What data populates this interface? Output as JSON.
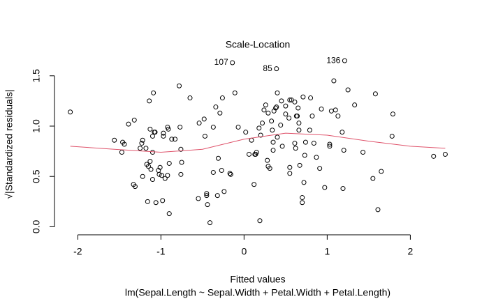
{
  "chart_data": {
    "type": "scatter",
    "title": "Scale-Location",
    "x_label": "Fitted values",
    "subtitle": "lm(Sepal.Length ~ Sepal.Width + Petal.Width + Petal.Length)",
    "y_label": "√|Standardized residuals|",
    "xlim": [
      -2.28,
      2.61
    ],
    "ylim": [
      -0.08,
      1.72
    ],
    "xticks": [
      -2,
      -1,
      0,
      1,
      2
    ],
    "yticks": [
      {
        "value": 0,
        "label": "0.0"
      },
      {
        "value": 0.5,
        "label": "0.5"
      },
      {
        "value": 1,
        "label": "1.0"
      },
      {
        "value": 1.5,
        "label": "1.5"
      }
    ],
    "points": {
      "color": "#000000",
      "x": [
        -2.09,
        -1.56,
        -1.46,
        -1.47,
        -1.44,
        -1.39,
        -1.32,
        -1.33,
        -1.31,
        -1.25,
        -1.23,
        -1.22,
        -1.22,
        -1.18,
        -1.17,
        -1.16,
        -1.15,
        -1.14,
        -1.13,
        -1.13,
        -1.09,
        -1.12,
        -1.1,
        -1.1,
        -1.1,
        -1.08,
        -1.07,
        -1.06,
        -1.03,
        -1.02,
        -1.01,
        -0.99,
        -0.98,
        -0.97,
        -0.97,
        -0.95,
        -0.92,
        -0.92,
        -0.91,
        -0.9,
        -0.9,
        -0.87,
        -0.83,
        -0.78,
        -0.77,
        -0.76,
        -0.75,
        -0.76,
        -0.65,
        -0.55,
        -0.54,
        -0.48,
        -0.47,
        -0.45,
        -0.45,
        -0.44,
        -0.41,
        -0.37,
        -0.37,
        -0.34,
        -0.32,
        -0.31,
        -0.29,
        -0.27,
        -0.26,
        -0.24,
        -0.17,
        -0.16,
        -0.14,
        -0.11,
        -0.07,
        0.02,
        0.06,
        0.09,
        0.12,
        0.13,
        0.14,
        0.15,
        0.18,
        0.19,
        0.2,
        0.22,
        0.24,
        0.26,
        0.28,
        0.29,
        0.29,
        0.31,
        0.33,
        0.34,
        0.35,
        0.35,
        0.36,
        0.38,
        0.39,
        0.4,
        0.4,
        0.39,
        0.44,
        0.45,
        0.46,
        0.5,
        0.5,
        0.54,
        0.55,
        0.55,
        0.55,
        0.57,
        0.61,
        0.61,
        0.62,
        0.63,
        0.64,
        0.65,
        0.66,
        0.66,
        0.67,
        0.7,
        0.7,
        0.71,
        0.72,
        0.73,
        0.74,
        0.79,
        0.8,
        0.82,
        0.84,
        0.87,
        0.91,
        0.93,
        0.97,
        1.03,
        1.03,
        1.05,
        1.08,
        1.1,
        1.13,
        1.18,
        1.19,
        1.2,
        1.21,
        1.25,
        1.33,
        1.43,
        1.55,
        1.58,
        1.61,
        1.65,
        1.78,
        1.79,
        2.28,
        2.42
      ],
      "y": [
        1.14,
        0.86,
        0.84,
        0.74,
        0.82,
        1.02,
        1.06,
        0.42,
        0.4,
        0.78,
        0.83,
        0.86,
        0.5,
        0.78,
        0.62,
        0.25,
        0.6,
        1.25,
        0.97,
        0.65,
        1.33,
        0.57,
        0.47,
        0.74,
        0.9,
        0.94,
        0.94,
        0.24,
        0.56,
        0.52,
        0.59,
        0.51,
        0.26,
        0.9,
        0.93,
        0.48,
        0.51,
        0.99,
        0.97,
        0.13,
        0.63,
        0.87,
        0.87,
        1.4,
        0.99,
        0.52,
        0.64,
        0.77,
        1.28,
        0.28,
        1.03,
        1.07,
        0.9,
        0.31,
        0.33,
        0.22,
        0.04,
        0.54,
        0.99,
        1.19,
        0.31,
        0.68,
        1.13,
        0.56,
        1.28,
        0.35,
        0.53,
        0.52,
        1.63,
        1.33,
        0.99,
        0.94,
        0.72,
        0.86,
        0.42,
        0.72,
        0.72,
        0.74,
        0.98,
        0.06,
        0.91,
        1.03,
        1.16,
        1.21,
        0.66,
        1.13,
        0.6,
        0.58,
        1.05,
        0.96,
        0.84,
        0.76,
        1.15,
        1.18,
        1.19,
        0.89,
        1.33,
        1.57,
        1.01,
        1.25,
        0.8,
        1.2,
        1.12,
        1.08,
        1.26,
        0.59,
        0.53,
        1.26,
        0.83,
        1.24,
        0.78,
        1.1,
        1.1,
        1.18,
        1.03,
        0.96,
        0.61,
        0.24,
        0.29,
        1.29,
        0.44,
        0.71,
        0.84,
        0.96,
        1.28,
        1.1,
        0.83,
        0.69,
        0.58,
        1.17,
        0.39,
        0.8,
        0.82,
        1.15,
        1.45,
        1.16,
        1.1,
        0.94,
        0.38,
        0.76,
        1.65,
        1.36,
        1.21,
        0.74,
        0.48,
        1.32,
        0.17,
        0.55,
        0.9,
        1.12,
        0.7,
        0.72
      ]
    },
    "smooth": {
      "color": "#DF536B",
      "x": [
        -2.09,
        -1.56,
        -1.0,
        -0.5,
        0,
        0.5,
        1,
        1.5,
        2,
        2.42
      ],
      "y": [
        0.8,
        0.77,
        0.74,
        0.77,
        0.87,
        0.93,
        0.91,
        0.85,
        0.8,
        0.78
      ]
    },
    "annotations": [
      {
        "text": "107",
        "x": -0.14,
        "y": 1.63
      },
      {
        "text": "85",
        "x": 0.39,
        "y": 1.57
      },
      {
        "text": "136",
        "x": 1.21,
        "y": 1.65
      }
    ]
  }
}
